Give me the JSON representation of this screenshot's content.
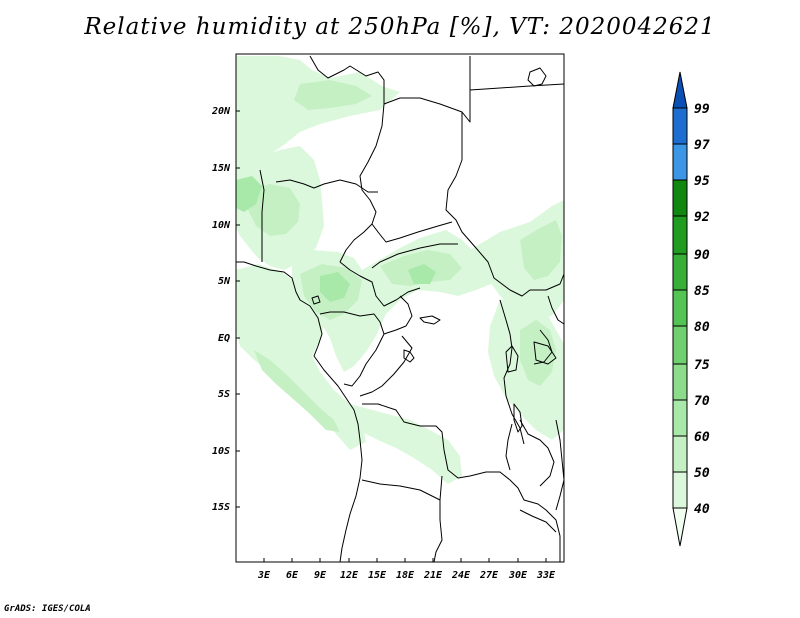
{
  "title": "Relative humidity at 250hPa [%], VT: 2020042621",
  "credit": "GrADS: IGES/COLA",
  "axes": {
    "lat_ticks": [
      "20N",
      "15N",
      "10N",
      "5N",
      "EQ",
      "5S",
      "10S",
      "15S"
    ],
    "lon_ticks": [
      "3E",
      "6E",
      "9E",
      "12E",
      "15E",
      "18E",
      "21E",
      "24E",
      "27E",
      "30E",
      "33E"
    ]
  },
  "colorbar": {
    "unit": "%",
    "levels": [
      "40",
      "50",
      "60",
      "70",
      "75",
      "80",
      "85",
      "90",
      "92",
      "95",
      "97",
      "99"
    ],
    "colors": [
      "#f0fff0",
      "#dcf8dc",
      "#c4f0c4",
      "#a8e8a8",
      "#8cdc8c",
      "#70d070",
      "#54c454",
      "#38b038",
      "#209c20",
      "#108810",
      "#3c96e6",
      "#1e6ed2",
      "#0a50b4"
    ]
  },
  "chart_data": {
    "type": "heatmap",
    "title": "Relative humidity at 250hPa [%], VT: 2020042621",
    "variable": "Relative humidity at 250hPa",
    "unit": "%",
    "valid_time": "2020042621",
    "lat_range": [
      -19,
      25
    ],
    "lon_range": [
      0,
      35
    ],
    "contour_levels": [
      40,
      50,
      60,
      70,
      75,
      80,
      85,
      90,
      92,
      95,
      97,
      99
    ]
  }
}
